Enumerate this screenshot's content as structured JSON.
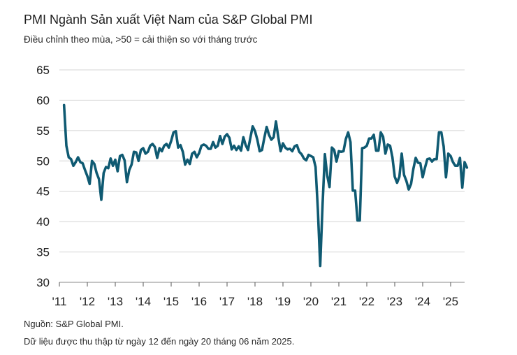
{
  "chart_data": {
    "type": "line",
    "title": "PMI Ngành Sản xuất Việt Nam của S&P Global PMI",
    "subtitle": "Điều chỉnh theo mùa, >50 = cải thiện so với tháng trước",
    "xlabel": "",
    "ylabel": "",
    "ylim": [
      30,
      65
    ],
    "y_ticks": [
      30,
      35,
      40,
      45,
      50,
      55,
      60,
      65
    ],
    "x_tick_labels": [
      "'11",
      "'12",
      "'13",
      "'14",
      "'15",
      "'16",
      "'17",
      "'18",
      "'19",
      "'20",
      "'21",
      "'22",
      "'23",
      "'24",
      "'25"
    ],
    "x_tick_years": [
      2011,
      2012,
      2013,
      2014,
      2015,
      2016,
      2017,
      2018,
      2019,
      2020,
      2021,
      2022,
      2023,
      2024,
      2025
    ],
    "xlim": [
      "2011-01",
      "2025-07"
    ],
    "grid": "horizontal",
    "line_color": "#0f5a72",
    "series": [
      {
        "start": "2011-03",
        "values": [
          59.2,
          52.5,
          50.6,
          50.3,
          49.2,
          49.8,
          50.6,
          49.8,
          49.6,
          48.5,
          47.5,
          46.2,
          50.0,
          49.5,
          48.0,
          47.0,
          43.6,
          48.0,
          49.0,
          48.8,
          50.4,
          49.2,
          50.2,
          48.3,
          50.8,
          51.0,
          50.1,
          46.5,
          48.5,
          49.4,
          51.5,
          51.4,
          50.0,
          51.8,
          52.1,
          51.2,
          51.5,
          52.5,
          52.8,
          52.3,
          50.5,
          52.1,
          51.6,
          52.5,
          52.8,
          52.2,
          53.3,
          54.7,
          54.9,
          52.2,
          52.6,
          51.5,
          49.4,
          50.2,
          49.5,
          51.2,
          51.5,
          50.6,
          51.3,
          52.5,
          52.7,
          52.5,
          52.0,
          52.0,
          53.1,
          52.2,
          52.5,
          54.1,
          52.8,
          54.0,
          54.4,
          53.8,
          51.9,
          52.5,
          51.8,
          52.4,
          51.7,
          53.9,
          52.6,
          51.8,
          53.8,
          55.7,
          54.9,
          53.5,
          51.6,
          51.8,
          53.8,
          55.6,
          54.3,
          53.5,
          53.9,
          56.5,
          53.9,
          51.6,
          52.9,
          52.2,
          51.9,
          52.0,
          51.6,
          52.4,
          52.6,
          51.5,
          51.1,
          50.4,
          50.1,
          51.0,
          50.8,
          50.6,
          49.0,
          41.9,
          32.7,
          42.7,
          51.1,
          47.6,
          45.7,
          52.2,
          51.8,
          49.9,
          51.6,
          51.5,
          51.6,
          53.6,
          54.7,
          53.1,
          45.1,
          45.1,
          40.2,
          40.2,
          52.1,
          52.2,
          52.5,
          53.7,
          53.7,
          54.3,
          51.7,
          51.7,
          54.7,
          54.0,
          51.2,
          52.7,
          52.5,
          50.6,
          47.4,
          46.4,
          47.4,
          51.2,
          47.7,
          46.7,
          45.3,
          46.2,
          48.7,
          50.5,
          49.7,
          49.6,
          47.3,
          48.9,
          50.3,
          50.4,
          49.9,
          50.3,
          50.3,
          54.7,
          54.7,
          52.4,
          47.3,
          51.2,
          50.8,
          49.8,
          49.2,
          49.2,
          50.5,
          45.6,
          49.8,
          48.9
        ]
      }
    ]
  },
  "footer": {
    "source": "Nguồn: S&P Global PMI.",
    "note": "Dữ liệu được thu thập từ ngày 12 đến ngày 20 tháng 06 năm 2025."
  }
}
